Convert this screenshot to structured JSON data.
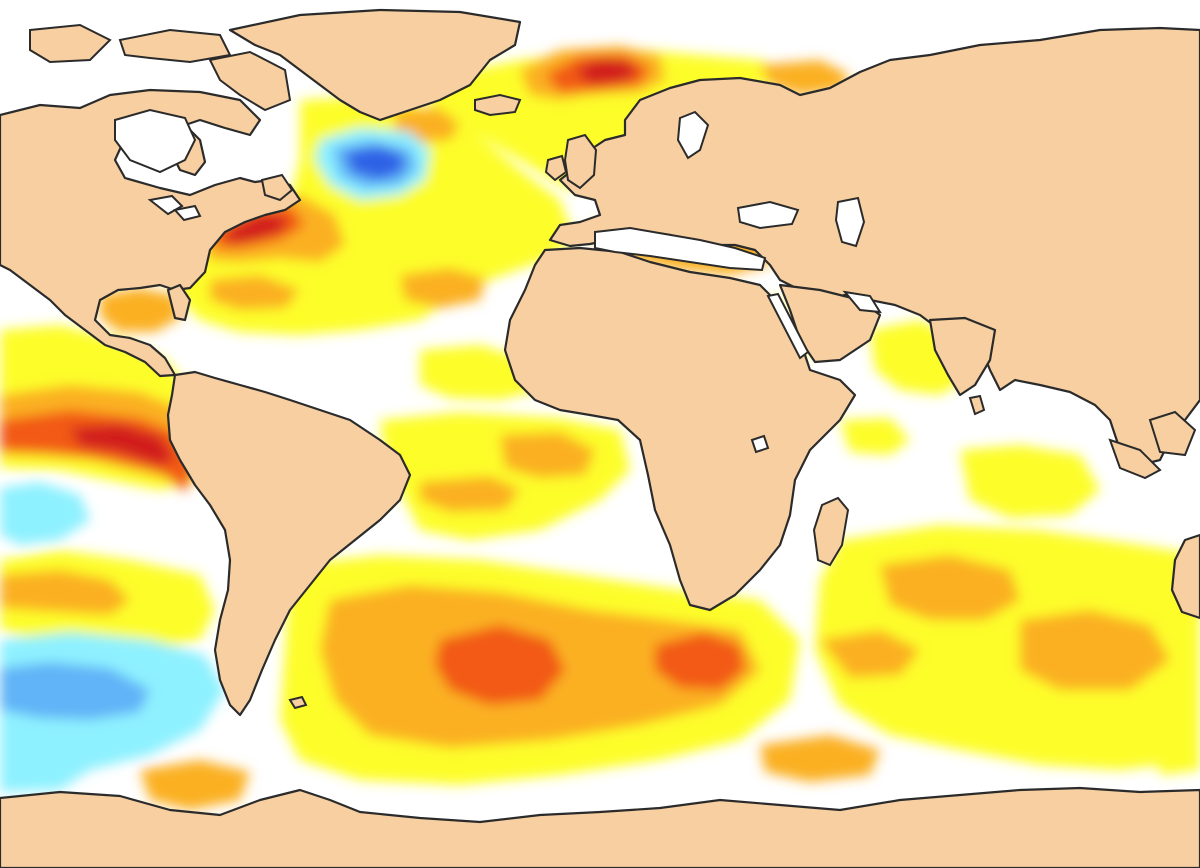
{
  "colors": {
    "ocean_neutral": "#ffffff",
    "land": "#f7cfa1",
    "coastline": "#2b2b2b",
    "anom_weak_warm": "#fdfd2a",
    "anom_moderate_warm": "#fbb021",
    "anom_strong_warm": "#f25a13",
    "anom_very_strong_warm": "#d11f1f",
    "anom_weak_cool": "#8ef1ff",
    "anom_moderate_cool": "#61b4f7",
    "anom_strong_cool": "#2f62e6"
  },
  "legend": {
    "visible": false
  }
}
